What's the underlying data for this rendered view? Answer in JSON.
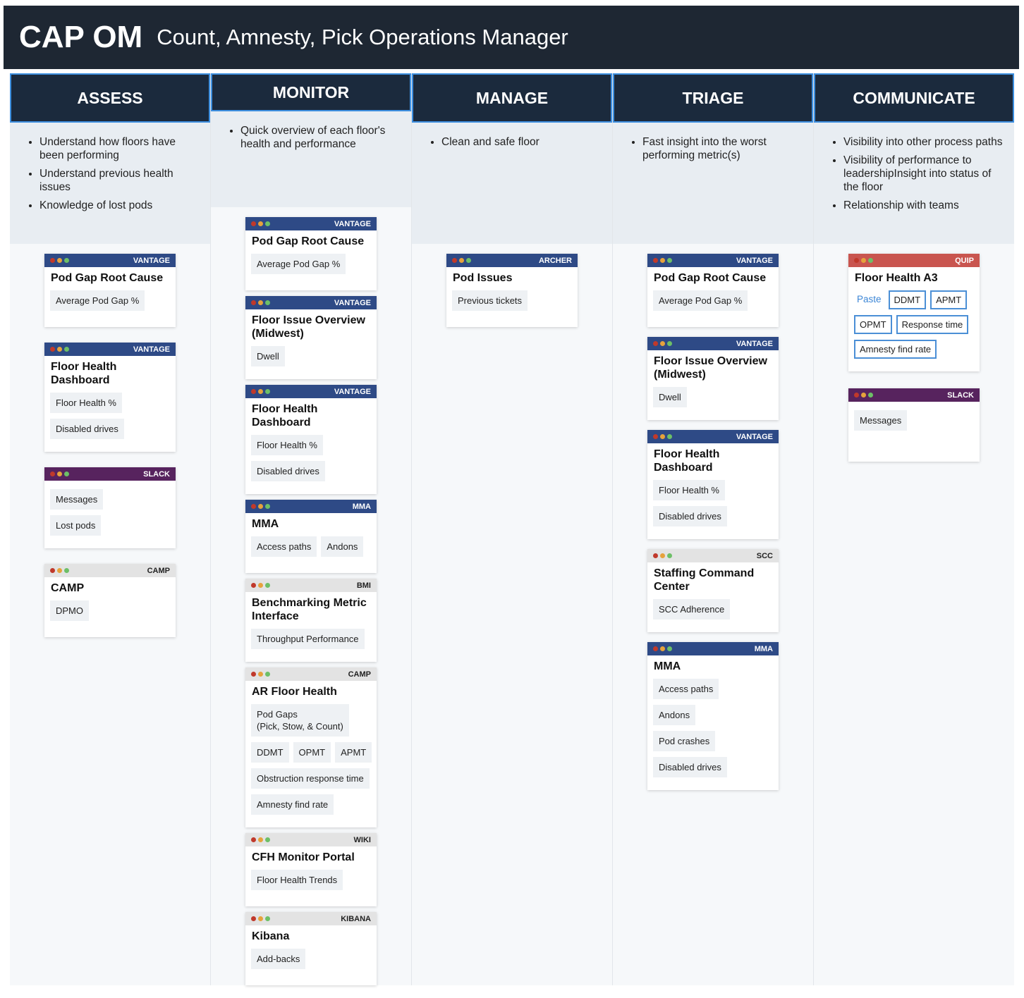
{
  "header": {
    "title": "CAP OM",
    "subtitle": "Count, Amnesty, Pick Operations Manager"
  },
  "columns": [
    {
      "title": "ASSESS",
      "bullets": [
        "Understand how floors have been performing",
        "Understand previous health issues",
        "Knowledge of lost pods"
      ],
      "cards": [
        {
          "tool": "VANTAGE",
          "color": "#2e4a86",
          "title": "Pod Gap Root Cause",
          "rows": [
            [
              "Average Pod Gap %"
            ]
          ]
        },
        {
          "tool": "VANTAGE",
          "color": "#2e4a86",
          "title": "Floor Health Dashboard",
          "rows": [
            [
              "Floor Health %"
            ],
            [
              "Disabled drives"
            ]
          ]
        },
        {
          "tool": "SLACK",
          "color": "#57235e",
          "title": null,
          "rows": [
            [
              "Messages"
            ],
            [
              "Lost pods"
            ]
          ]
        },
        {
          "tool": "CAMP",
          "color": "#e3e3e3",
          "title": "CAMP",
          "rows": [
            [
              "DPMO"
            ]
          ]
        }
      ]
    },
    {
      "title": "MONITOR",
      "bullets": [
        "Quick overview of each floor's health and performance"
      ],
      "cards": [
        {
          "tool": "VANTAGE",
          "color": "#2e4a86",
          "title": "Pod Gap Root Cause",
          "rows": [
            [
              "Average Pod Gap %"
            ]
          ]
        },
        {
          "tool": "VANTAGE",
          "color": "#2e4a86",
          "title": "Floor Issue Overview (Midwest)",
          "rows": [
            [
              "Dwell"
            ]
          ]
        },
        {
          "tool": "VANTAGE",
          "color": "#2e4a86",
          "title": "Floor Health Dashboard",
          "rows": [
            [
              "Floor Health %"
            ],
            [
              "Disabled drives"
            ]
          ]
        },
        {
          "tool": "MMA",
          "color": "#2e4a86",
          "title": "MMA",
          "rows": [
            [
              "Access paths",
              "Andons"
            ]
          ]
        },
        {
          "tool": "BMI",
          "color": "#e3e3e3",
          "title": "Benchmarking Metric Interface",
          "rows": [
            [
              "Throughput Performance"
            ]
          ]
        },
        {
          "tool": "CAMP",
          "color": "#e3e3e3",
          "title": "AR Floor Health",
          "rows": [
            [
              "Pod Gaps\n(Pick, Stow, & Count)"
            ],
            [
              "DDMT",
              "OPMT",
              "APMT"
            ],
            [
              "Obstruction response time"
            ],
            [
              "Amnesty find rate"
            ]
          ]
        },
        {
          "tool": "WIKI",
          "color": "#e3e3e3",
          "title": "CFH Monitor Portal",
          "rows": [
            [
              "Floor Health Trends"
            ]
          ]
        },
        {
          "tool": "KIBANA",
          "color": "#e3e3e3",
          "title": "Kibana",
          "rows": [
            [
              "Add-backs"
            ]
          ]
        }
      ]
    },
    {
      "title": "MANAGE",
      "bullets": [
        "Clean and safe floor"
      ],
      "cards": [
        {
          "tool": "ARCHER",
          "color": "#2e4a86",
          "title": "Pod Issues",
          "rows": [
            [
              "Previous tickets"
            ]
          ]
        }
      ]
    },
    {
      "title": "TRIAGE",
      "bullets": [
        "Fast insight into the worst performing metric(s)"
      ],
      "cards": [
        {
          "tool": "VANTAGE",
          "color": "#2e4a86",
          "title": "Pod Gap Root Cause",
          "rows": [
            [
              "Average Pod Gap %"
            ]
          ]
        },
        {
          "tool": "VANTAGE",
          "color": "#2e4a86",
          "title": "Floor Issue Overview (Midwest)",
          "rows": [
            [
              "Dwell"
            ]
          ]
        },
        {
          "tool": "VANTAGE",
          "color": "#2e4a86",
          "title": "Floor Health Dashboard",
          "rows": [
            [
              "Floor Health %"
            ],
            [
              "Disabled drives"
            ]
          ]
        },
        {
          "tool": "SCC",
          "color": "#e3e3e3",
          "title": "Staffing Command Center",
          "rows": [
            [
              "SCC Adherence"
            ]
          ]
        },
        {
          "tool": "MMA",
          "color": "#2e4a86",
          "title": "MMA",
          "rows": [
            [
              "Access paths"
            ],
            [
              "Andons"
            ],
            [
              "Pod crashes"
            ],
            [
              "Disabled drives"
            ]
          ]
        }
      ]
    },
    {
      "title": "COMMUNICATE",
      "bullets": [
        "Visibility into other process paths",
        "Visibility of performance to leadershipInsight into status of the floor",
        "Relationship with teams"
      ],
      "cards": [
        {
          "tool": "QUIP",
          "color": "#c9554f",
          "title": "Floor Health A3",
          "action": "Paste",
          "outlined": true,
          "rows": [
            [
              "DDMT",
              "APMT"
            ],
            [
              "OPMT",
              "Response time"
            ],
            [
              "Amnesty find rate"
            ]
          ]
        },
        {
          "tool": "SLACK",
          "color": "#57235e",
          "title": null,
          "rows": [
            [
              "Messages"
            ]
          ]
        }
      ]
    }
  ]
}
